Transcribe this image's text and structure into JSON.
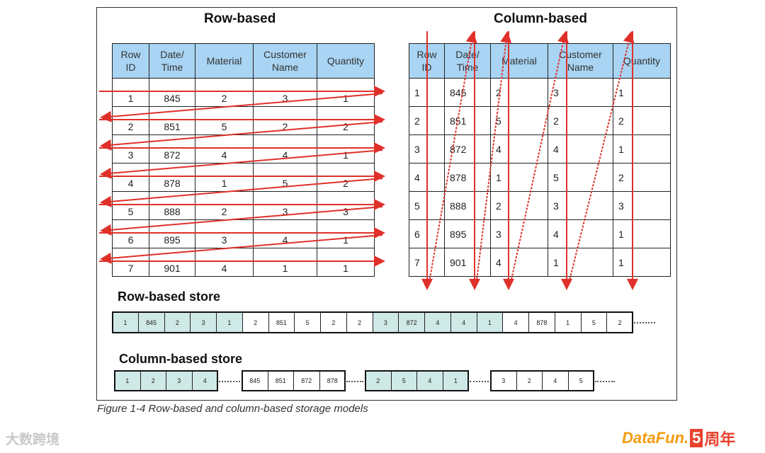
{
  "row_table": {
    "title": "Row-based",
    "headers": [
      [
        "Row",
        "ID"
      ],
      [
        "Date/",
        "Time"
      ],
      [
        "Material"
      ],
      [
        "Customer",
        "Name"
      ],
      [
        "Quantity"
      ]
    ],
    "rows": [
      [
        1,
        845,
        2,
        3,
        1
      ],
      [
        2,
        851,
        5,
        2,
        2
      ],
      [
        3,
        872,
        4,
        4,
        1
      ],
      [
        4,
        878,
        1,
        5,
        2
      ],
      [
        5,
        888,
        2,
        3,
        3
      ],
      [
        6,
        895,
        3,
        4,
        1
      ],
      [
        7,
        901,
        4,
        1,
        1
      ]
    ]
  },
  "column_table": {
    "title": "Column-based",
    "headers": [
      [
        "Row",
        "ID"
      ],
      [
        "Date/",
        "Time"
      ],
      [
        "Material"
      ],
      [
        "Customer",
        "Name"
      ],
      [
        "Quantity"
      ]
    ],
    "rows": [
      [
        1,
        845,
        2,
        3,
        1
      ],
      [
        2,
        851,
        5,
        2,
        2
      ],
      [
        3,
        872,
        4,
        4,
        1
      ],
      [
        4,
        878,
        1,
        5,
        2
      ],
      [
        5,
        888,
        2,
        3,
        3
      ],
      [
        6,
        895,
        3,
        4,
        1
      ],
      [
        7,
        901,
        4,
        1,
        1
      ]
    ]
  },
  "row_store": {
    "title": "Row-based store",
    "cells": [
      1,
      845,
      2,
      3,
      1,
      2,
      851,
      5,
      2,
      2,
      3,
      872,
      4,
      4,
      1,
      4,
      878,
      1,
      5,
      2
    ]
  },
  "column_store": {
    "title": "Column-based store",
    "groups": [
      [
        1,
        2,
        3,
        4
      ],
      [
        845,
        851,
        872,
        878
      ],
      [
        2,
        5,
        4,
        1
      ],
      [
        3,
        2,
        4,
        5
      ]
    ]
  },
  "caption": "Figure 1-4   Row-based and column-based storage models",
  "watermark_left": "大数跨境",
  "watermark_right": {
    "brand": "DataFun.",
    "number": "5",
    "suffix": "周年"
  }
}
